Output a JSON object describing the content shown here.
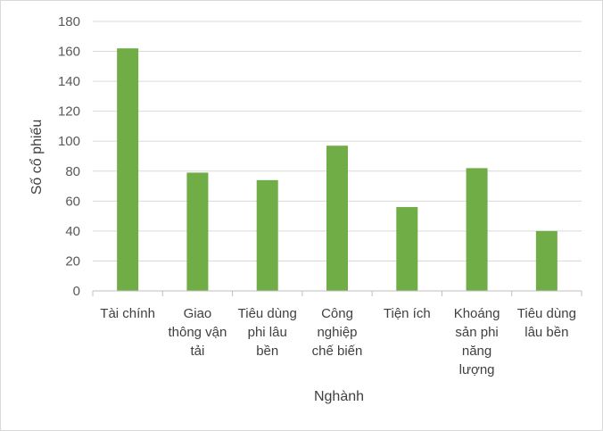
{
  "chart_data": {
    "type": "bar",
    "title": "",
    "xlabel": "Nghành",
    "ylabel": "Số cổ phiếu",
    "ylim": [
      0,
      180
    ],
    "yticks": [
      0,
      20,
      40,
      60,
      80,
      100,
      120,
      140,
      160,
      180
    ],
    "grid": true,
    "legend": "none",
    "bar_color": "#70ad47",
    "categories": [
      [
        "Tài chính"
      ],
      [
        "Giao",
        "thông vận",
        "tải"
      ],
      [
        "Tiêu dùng",
        "phi lâu",
        "bền"
      ],
      [
        "Công",
        "nghiệp",
        "chế biến"
      ],
      [
        "Tiện ích"
      ],
      [
        "Khoáng",
        "sản phi",
        "năng",
        "lượng"
      ],
      [
        "Tiêu dùng",
        "lâu bền"
      ]
    ],
    "values": [
      162,
      79,
      74,
      97,
      56,
      82,
      40
    ]
  }
}
